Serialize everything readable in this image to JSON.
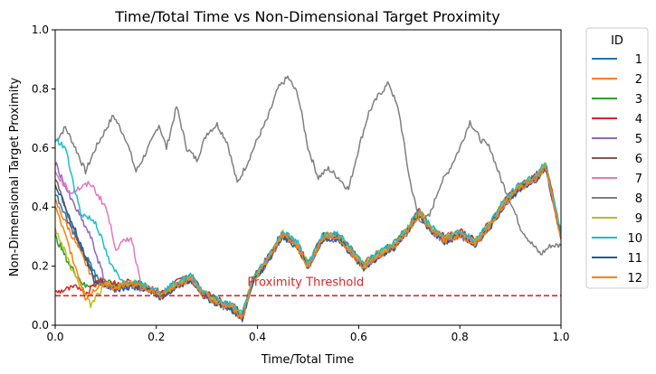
{
  "chart_data": {
    "type": "line",
    "title": "Time/Total Time vs Non-Dimensional Target Proximity",
    "xlabel": "Time/Total Time",
    "ylabel": "Non-Dimensional Target Proximity",
    "xlim": [
      0,
      1
    ],
    "ylim": [
      0,
      1
    ],
    "xticks": [
      0.0,
      0.2,
      0.4,
      0.6,
      0.8,
      1.0
    ],
    "xtick_labels": [
      "0.0",
      "0.2",
      "0.4",
      "0.6",
      "0.8",
      "1.0"
    ],
    "yticks": [
      0.0,
      0.2,
      0.4,
      0.6,
      0.8,
      1.0
    ],
    "ytick_labels": [
      "0.0",
      "0.2",
      "0.4",
      "0.6",
      "0.8",
      "1.0"
    ],
    "grid": false,
    "legend": {
      "title": "ID",
      "placement": "outside-right"
    },
    "threshold": {
      "value": 0.1,
      "label": "Proximity Threshold",
      "color": "#d62728",
      "label_x": 0.38
    },
    "common_trajectory": [
      [
        0.0,
        0.14
      ],
      [
        0.03,
        0.13
      ],
      [
        0.06,
        0.1
      ],
      [
        0.09,
        0.15
      ],
      [
        0.12,
        0.13
      ],
      [
        0.15,
        0.14
      ],
      [
        0.18,
        0.13
      ],
      [
        0.21,
        0.1
      ],
      [
        0.24,
        0.14
      ],
      [
        0.27,
        0.16
      ],
      [
        0.29,
        0.11
      ],
      [
        0.32,
        0.08
      ],
      [
        0.35,
        0.06
      ],
      [
        0.37,
        0.03
      ],
      [
        0.39,
        0.15
      ],
      [
        0.42,
        0.22
      ],
      [
        0.45,
        0.31
      ],
      [
        0.48,
        0.27
      ],
      [
        0.5,
        0.2
      ],
      [
        0.53,
        0.3
      ],
      [
        0.56,
        0.3
      ],
      [
        0.58,
        0.26
      ],
      [
        0.61,
        0.2
      ],
      [
        0.64,
        0.24
      ],
      [
        0.67,
        0.27
      ],
      [
        0.7,
        0.33
      ],
      [
        0.72,
        0.38
      ],
      [
        0.74,
        0.33
      ],
      [
        0.77,
        0.29
      ],
      [
        0.8,
        0.31
      ],
      [
        0.83,
        0.28
      ],
      [
        0.86,
        0.34
      ],
      [
        0.89,
        0.42
      ],
      [
        0.92,
        0.47
      ],
      [
        0.95,
        0.5
      ],
      [
        0.97,
        0.54
      ],
      [
        0.985,
        0.42
      ],
      [
        1.0,
        0.3
      ]
    ],
    "series": [
      {
        "name": "1",
        "color": "#1f77b4",
        "start": [
          [
            0.0,
            0.45
          ],
          [
            0.04,
            0.3
          ],
          [
            0.09,
            0.14
          ]
        ]
      },
      {
        "name": "2",
        "color": "#ff7f0e",
        "start": [
          [
            0.0,
            0.42
          ],
          [
            0.04,
            0.28
          ],
          [
            0.08,
            0.14
          ]
        ]
      },
      {
        "name": "3",
        "color": "#2ca02c",
        "start": [
          [
            0.0,
            0.3
          ],
          [
            0.03,
            0.2
          ],
          [
            0.06,
            0.13
          ]
        ]
      },
      {
        "name": "4",
        "color": "#d62728",
        "start": [
          [
            0.0,
            0.11
          ],
          [
            0.02,
            0.12
          ],
          [
            0.05,
            0.13
          ]
        ]
      },
      {
        "name": "5",
        "color": "#9467bd",
        "start": [
          [
            0.0,
            0.55
          ],
          [
            0.03,
            0.43
          ],
          [
            0.07,
            0.3
          ],
          [
            0.1,
            0.14
          ]
        ]
      },
      {
        "name": "6",
        "color": "#8c564b",
        "start": [
          [
            0.0,
            0.5
          ],
          [
            0.03,
            0.35
          ],
          [
            0.08,
            0.15
          ]
        ]
      },
      {
        "name": "7",
        "color": "#e377c2",
        "start": [
          [
            0.0,
            0.52
          ],
          [
            0.03,
            0.45
          ],
          [
            0.07,
            0.48
          ],
          [
            0.1,
            0.4
          ],
          [
            0.12,
            0.26
          ],
          [
            0.15,
            0.3
          ],
          [
            0.17,
            0.14
          ]
        ]
      },
      {
        "name": "8",
        "color": "#7f7f7f",
        "full": [
          [
            0.0,
            0.62
          ],
          [
            0.02,
            0.67
          ],
          [
            0.04,
            0.6
          ],
          [
            0.06,
            0.52
          ],
          [
            0.08,
            0.6
          ],
          [
            0.115,
            0.71
          ],
          [
            0.14,
            0.63
          ],
          [
            0.16,
            0.52
          ],
          [
            0.19,
            0.62
          ],
          [
            0.205,
            0.68
          ],
          [
            0.22,
            0.6
          ],
          [
            0.24,
            0.74
          ],
          [
            0.26,
            0.6
          ],
          [
            0.28,
            0.56
          ],
          [
            0.3,
            0.65
          ],
          [
            0.32,
            0.68
          ],
          [
            0.34,
            0.62
          ],
          [
            0.36,
            0.48
          ],
          [
            0.38,
            0.55
          ],
          [
            0.4,
            0.63
          ],
          [
            0.42,
            0.7
          ],
          [
            0.44,
            0.8
          ],
          [
            0.46,
            0.84
          ],
          [
            0.48,
            0.78
          ],
          [
            0.5,
            0.6
          ],
          [
            0.52,
            0.5
          ],
          [
            0.54,
            0.53
          ],
          [
            0.56,
            0.5
          ],
          [
            0.58,
            0.46
          ],
          [
            0.6,
            0.6
          ],
          [
            0.62,
            0.72
          ],
          [
            0.64,
            0.78
          ],
          [
            0.66,
            0.82
          ],
          [
            0.68,
            0.72
          ],
          [
            0.7,
            0.5
          ],
          [
            0.72,
            0.35
          ],
          [
            0.74,
            0.37
          ],
          [
            0.76,
            0.47
          ],
          [
            0.78,
            0.53
          ],
          [
            0.8,
            0.6
          ],
          [
            0.82,
            0.69
          ],
          [
            0.84,
            0.63
          ],
          [
            0.86,
            0.6
          ],
          [
            0.88,
            0.5
          ],
          [
            0.9,
            0.42
          ],
          [
            0.92,
            0.33
          ],
          [
            0.94,
            0.28
          ],
          [
            0.96,
            0.24
          ],
          [
            0.98,
            0.27
          ],
          [
            1.0,
            0.27
          ]
        ]
      },
      {
        "name": "9",
        "color": "#bcbd22",
        "start": [
          [
            0.0,
            0.33
          ],
          [
            0.03,
            0.2
          ],
          [
            0.07,
            0.07
          ],
          [
            0.1,
            0.14
          ]
        ]
      },
      {
        "name": "10",
        "color": "#17becf",
        "start": [
          [
            0.0,
            0.63
          ],
          [
            0.02,
            0.6
          ],
          [
            0.05,
            0.38
          ],
          [
            0.08,
            0.35
          ],
          [
            0.11,
            0.2
          ],
          [
            0.14,
            0.14
          ]
        ]
      },
      {
        "name": "11",
        "color": "#1f5f94",
        "start": [
          [
            0.0,
            0.48
          ],
          [
            0.04,
            0.32
          ],
          [
            0.08,
            0.14
          ]
        ]
      },
      {
        "name": "12",
        "color": "#ff7f0e",
        "start": [
          [
            0.0,
            0.4
          ],
          [
            0.03,
            0.25
          ],
          [
            0.06,
            0.09
          ],
          [
            0.09,
            0.14
          ]
        ]
      }
    ]
  }
}
